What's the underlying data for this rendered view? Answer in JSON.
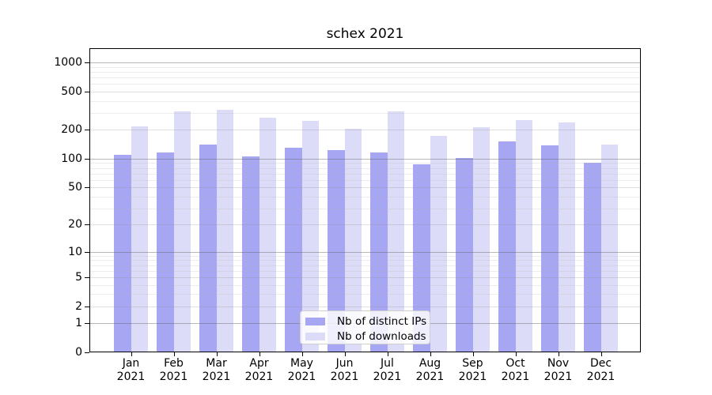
{
  "chart_data": {
    "type": "bar",
    "title": "schex 2021",
    "categories": [
      "Jan",
      "Feb",
      "Mar",
      "Apr",
      "May",
      "Jun",
      "Jul",
      "Aug",
      "Sep",
      "Oct",
      "Nov",
      "Dec"
    ],
    "year_label": "2021",
    "series": [
      {
        "name": "Nb of distinct IPs",
        "color": "#a6a6f2",
        "values": [
          110,
          115,
          141,
          105,
          129,
          123,
          115,
          87,
          102,
          150,
          137,
          91
        ]
      },
      {
        "name": "Nb of downloads",
        "color": "#dcdcf9",
        "values": [
          215,
          310,
          320,
          268,
          247,
          203,
          312,
          174,
          214,
          254,
          236,
          139
        ]
      }
    ],
    "yticks": [
      0,
      1,
      2,
      5,
      10,
      20,
      50,
      100,
      200,
      500,
      1000
    ],
    "scale": "log1p",
    "ylim": [
      0,
      1400
    ],
    "grid": true,
    "legend_position": "lower-center",
    "xlabel": "",
    "ylabel": ""
  }
}
